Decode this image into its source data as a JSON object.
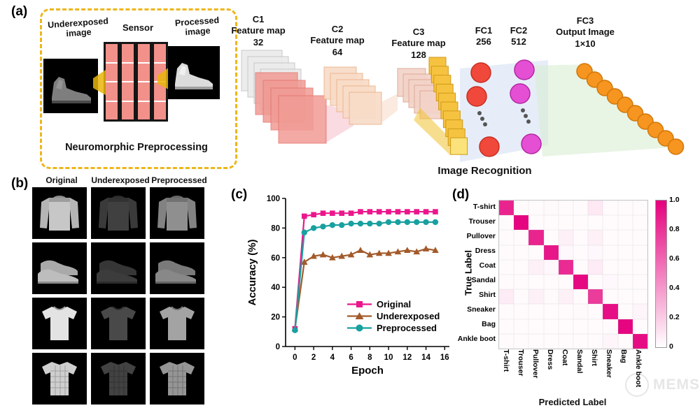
{
  "panel_a": {
    "tag": "(a)",
    "underexposed_label": "Underexposed image",
    "sensor_label": "Sensor",
    "processed_label": "Processed image",
    "box_caption": "Neuromorphic Preprocessing",
    "cnn": {
      "c1": {
        "name": "C1",
        "sub": "Feature map",
        "num": "32"
      },
      "c2": {
        "name": "C2",
        "sub": "Feature map",
        "num": "64"
      },
      "c3": {
        "name": "C3",
        "sub": "Feature map",
        "num": "128"
      },
      "fc1": {
        "name": "FC1",
        "num": "256"
      },
      "fc2": {
        "name": "FC2",
        "num": "512"
      },
      "fc3": {
        "name": "FC3",
        "sub": "Output Image",
        "num": "1×10"
      }
    },
    "caption": "Image Recognition"
  },
  "panel_b": {
    "tag": "(b)",
    "columns": [
      {
        "label": "Original",
        "brightness": 1
      },
      {
        "label": "Underexposed",
        "brightness": 0.32
      },
      {
        "label": "Preprocessed",
        "brightness": 0.72
      }
    ],
    "rows": [
      "pullover",
      "sneakers",
      "t-shirt",
      "shirt"
    ]
  },
  "panel_c": {
    "tag": "(c)"
  },
  "panel_d": {
    "tag": "(d)",
    "watermark": "MEMS"
  },
  "chart_data": [
    {
      "type": "line",
      "xlabel": "Epoch",
      "ylabel": "Accuracy (%)",
      "xlim": [
        -1,
        16.5
      ],
      "ylim": [
        0,
        100
      ],
      "xticks": [
        0,
        2,
        4,
        6,
        8,
        10,
        12,
        14,
        16
      ],
      "yticks": [
        0,
        20,
        40,
        60,
        80,
        100
      ],
      "x": [
        0,
        1,
        2,
        3,
        4,
        5,
        6,
        7,
        8,
        9,
        10,
        11,
        12,
        13,
        14,
        15
      ],
      "series": [
        {
          "name": "Original",
          "color": "#ec168c",
          "marker": "square",
          "values": [
            12,
            88,
            89,
            90,
            90,
            90,
            90,
            91,
            91,
            91,
            91,
            91,
            91,
            91,
            91,
            91
          ]
        },
        {
          "name": "Underexposed",
          "color": "#a35a2a",
          "marker": "triangle",
          "values": [
            12,
            57,
            61,
            62,
            60,
            61,
            62,
            65,
            62,
            63,
            63,
            64,
            65,
            64,
            66,
            65
          ]
        },
        {
          "name": "Preprocessed",
          "color": "#19a0a0",
          "marker": "circle",
          "values": [
            11,
            77,
            80,
            81,
            82,
            82,
            83,
            83,
            83,
            83,
            84,
            84,
            84,
            84,
            84,
            84
          ]
        }
      ],
      "legend_position": "lower right",
      "grid": false
    },
    {
      "type": "heatmap",
      "xlabel": "Predicted Label",
      "ylabel": "True Label",
      "classes": [
        "T-shirt",
        "Trouser",
        "Pullover",
        "Dress",
        "Coat",
        "Sandal",
        "Shirt",
        "Sneaker",
        "Bag",
        "Ankle boot"
      ],
      "color_max": "#e5007d",
      "colorbar": {
        "min": 0,
        "max": 1.0,
        "ticks": [
          "1.0",
          "0.8",
          "0.6",
          "0.4",
          "0.2",
          "0"
        ]
      },
      "matrix": [
        [
          0.86,
          0.0,
          0.01,
          0.02,
          0.0,
          0.0,
          0.09,
          0.0,
          0.01,
          0.0
        ],
        [
          0.0,
          0.98,
          0.0,
          0.01,
          0.0,
          0.0,
          0.0,
          0.0,
          0.0,
          0.0
        ],
        [
          0.01,
          0.0,
          0.86,
          0.01,
          0.06,
          0.0,
          0.06,
          0.0,
          0.0,
          0.0
        ],
        [
          0.01,
          0.01,
          0.01,
          0.91,
          0.03,
          0.0,
          0.03,
          0.0,
          0.0,
          0.0
        ],
        [
          0.0,
          0.0,
          0.06,
          0.03,
          0.83,
          0.0,
          0.08,
          0.0,
          0.0,
          0.0
        ],
        [
          0.0,
          0.0,
          0.0,
          0.0,
          0.0,
          0.96,
          0.0,
          0.03,
          0.0,
          0.01
        ],
        [
          0.08,
          0.0,
          0.06,
          0.02,
          0.06,
          0.0,
          0.77,
          0.0,
          0.01,
          0.0
        ],
        [
          0.0,
          0.0,
          0.0,
          0.0,
          0.0,
          0.02,
          0.0,
          0.94,
          0.0,
          0.04
        ],
        [
          0.0,
          0.0,
          0.01,
          0.0,
          0.0,
          0.0,
          0.01,
          0.0,
          0.98,
          0.0
        ],
        [
          0.0,
          0.0,
          0.0,
          0.0,
          0.0,
          0.01,
          0.0,
          0.04,
          0.0,
          0.95
        ]
      ]
    }
  ]
}
